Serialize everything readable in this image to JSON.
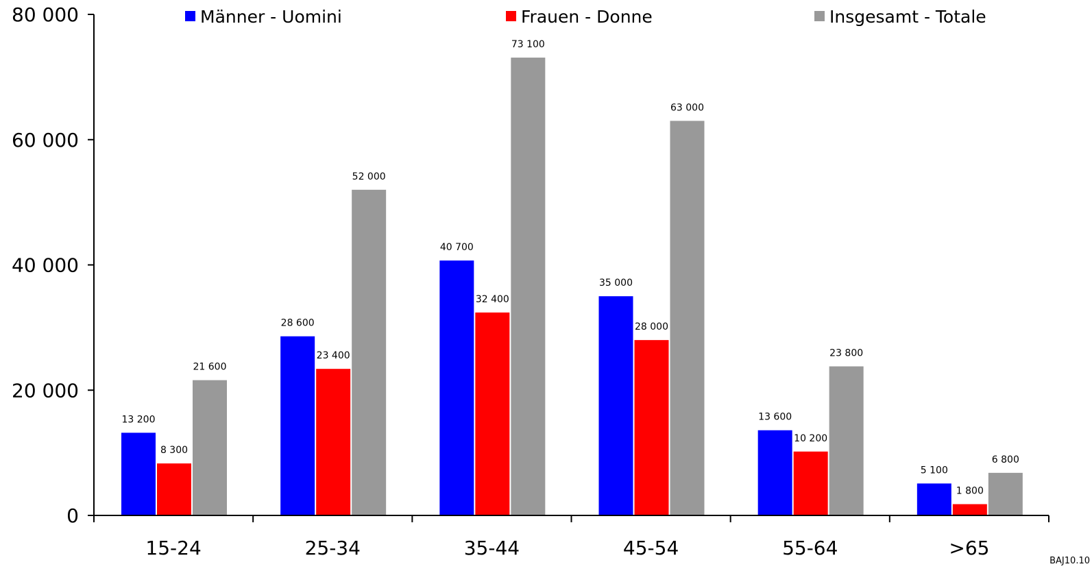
{
  "chart_data": {
    "type": "bar",
    "categories": [
      "15-24",
      "25-34",
      "35-44",
      "45-54",
      "55-64",
      ">65"
    ],
    "series": [
      {
        "name": "Männer - Uomini",
        "color": "#0000ff",
        "values": [
          13200,
          28600,
          40700,
          35000,
          13600,
          5100
        ],
        "labels": [
          "13 200",
          "28 600",
          "40 700",
          "35 000",
          "13 600",
          "5 100"
        ]
      },
      {
        "name": "Frauen - Donne",
        "color": "#ff0000",
        "values": [
          8300,
          23400,
          32400,
          28000,
          10200,
          1800
        ],
        "labels": [
          "8 300",
          "23 400",
          "32 400",
          "28 000",
          "10 200",
          "1 800"
        ]
      },
      {
        "name": "Insgesamt - Totale",
        "color": "#999999",
        "values": [
          21600,
          52000,
          73100,
          63000,
          23800,
          6800
        ],
        "labels": [
          "21 600",
          "52 000",
          "73 100",
          "63 000",
          "23 800",
          "6 800"
        ]
      }
    ],
    "ylim": [
      0,
      80000
    ],
    "yticks": [
      0,
      20000,
      40000,
      60000,
      80000
    ],
    "ytick_labels": [
      "0",
      "20 000",
      "40 000",
      "60 000",
      "80 000"
    ],
    "legend_position": "top",
    "grid": false,
    "footnote": "BAJ10.10"
  }
}
